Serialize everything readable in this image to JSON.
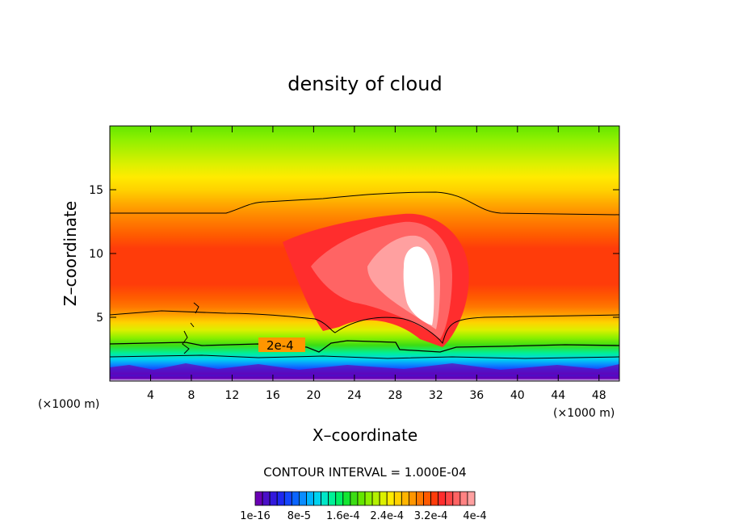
{
  "chart_data": {
    "type": "heatmap",
    "title": "density of cloud",
    "xlabel": "X–coordinate",
    "ylabel": "Z–coordinate",
    "x_unit": "(×1000 m)",
    "y_unit": "(×1000 m)",
    "xlim": [
      0,
      50
    ],
    "ylim": [
      0,
      20
    ],
    "x_ticks": [
      4,
      8,
      12,
      16,
      20,
      24,
      28,
      32,
      36,
      40,
      44,
      48
    ],
    "y_ticks": [
      5,
      10,
      15
    ],
    "contour_interval_label": "CONTOUR INTERVAL = 1.000E-04",
    "contour_label": "2e-4",
    "colorbar": {
      "labels": [
        "1e-16",
        "8e-5",
        "1.6e-4",
        "2.4e-4",
        "3.2e-4",
        "4e-4"
      ],
      "colors": [
        "#6a00b4",
        "#4b0fc8",
        "#3219dc",
        "#1e28f0",
        "#1446ff",
        "#0a64ff",
        "#0a8cff",
        "#00b4ff",
        "#00d2f0",
        "#00e6c8",
        "#00f096",
        "#00f064",
        "#14e632",
        "#3cdc14",
        "#64e600",
        "#8cf000",
        "#b4f000",
        "#dcf000",
        "#ffeb00",
        "#ffd200",
        "#ffb400",
        "#ff9600",
        "#ff7800",
        "#ff5a00",
        "#ff3c0a",
        "#ff2d2d",
        "#ff4646",
        "#ff6464",
        "#ff8282",
        "#ffa0a0"
      ]
    }
  }
}
